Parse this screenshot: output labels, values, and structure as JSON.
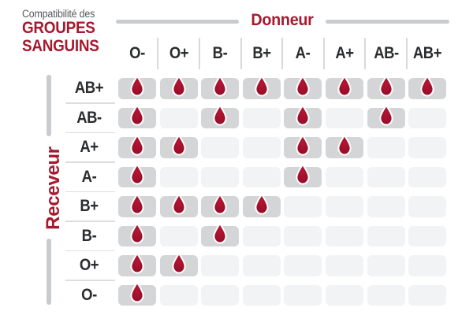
{
  "title": {
    "pre": "Compatibilité des",
    "line1": "GROUPES",
    "line2": "SANGUINS"
  },
  "axes": {
    "donor_label": "Donneur",
    "receiver_label": "Receveur"
  },
  "donors": [
    "O-",
    "O+",
    "B-",
    "B+",
    "A-",
    "A+",
    "AB-",
    "AB+"
  ],
  "receivers": [
    "AB+",
    "AB-",
    "A+",
    "A-",
    "B+",
    "B-",
    "O+",
    "O-"
  ],
  "matrix": [
    [
      1,
      1,
      1,
      1,
      1,
      1,
      1,
      1
    ],
    [
      1,
      0,
      1,
      0,
      1,
      0,
      1,
      0
    ],
    [
      1,
      1,
      0,
      0,
      1,
      1,
      0,
      0
    ],
    [
      1,
      0,
      0,
      0,
      1,
      0,
      0,
      0
    ],
    [
      1,
      1,
      1,
      1,
      0,
      0,
      0,
      0
    ],
    [
      1,
      0,
      1,
      0,
      0,
      0,
      0,
      0
    ],
    [
      1,
      1,
      0,
      0,
      0,
      0,
      0,
      0
    ],
    [
      1,
      0,
      0,
      0,
      0,
      0,
      0,
      0
    ]
  ],
  "icons": {
    "compatible": "blood-drop-icon"
  },
  "colors": {
    "accent_red": "#A6192E",
    "drop_inner": "#B51534",
    "drop_outer": "#8F0C26",
    "drop_stroke": "#FFFFFF",
    "cell_filled": "#D3D5D7",
    "cell_empty": "#F2F3F4",
    "axis_line_gray": "#C9CCCE",
    "divider_gray": "#D7D9DB",
    "label_dark": "#2B2C2E",
    "subtitle_gray": "#58595C"
  },
  "chart_data": {
    "type": "heatmap",
    "title": "Compatibilité des GROUPES SANGUINS",
    "x_axis_label": "Donneur",
    "y_axis_label": "Receveur",
    "columns": [
      "O-",
      "O+",
      "B-",
      "B+",
      "A-",
      "A+",
      "AB-",
      "AB+"
    ],
    "rows": [
      "AB+",
      "AB-",
      "A+",
      "A-",
      "B+",
      "B-",
      "O+",
      "O-"
    ],
    "matrix": [
      [
        1,
        1,
        1,
        1,
        1,
        1,
        1,
        1
      ],
      [
        1,
        0,
        1,
        0,
        1,
        0,
        1,
        0
      ],
      [
        1,
        1,
        0,
        0,
        1,
        1,
        0,
        0
      ],
      [
        1,
        0,
        0,
        0,
        1,
        0,
        0,
        0
      ],
      [
        1,
        1,
        1,
        1,
        0,
        0,
        0,
        0
      ],
      [
        1,
        0,
        1,
        0,
        0,
        0,
        0,
        0
      ],
      [
        1,
        1,
        0,
        0,
        0,
        0,
        0,
        0
      ],
      [
        1,
        0,
        0,
        0,
        0,
        0,
        0,
        0
      ]
    ],
    "cell_encoding": "1 = compatible (blood drop shown on gray cell), 0 = not compatible (empty light cell)",
    "compatibility": {
      "AB+": [
        "O-",
        "O+",
        "B-",
        "B+",
        "A-",
        "A+",
        "AB-",
        "AB+"
      ],
      "AB-": [
        "O-",
        "B-",
        "A-",
        "AB-"
      ],
      "A+": [
        "O-",
        "O+",
        "A-",
        "A+"
      ],
      "A-": [
        "O-",
        "A-"
      ],
      "B+": [
        "O-",
        "O+",
        "B-",
        "B+"
      ],
      "B-": [
        "O-",
        "B-"
      ],
      "O+": [
        "O-",
        "O+"
      ],
      "O-": [
        "O-"
      ]
    }
  }
}
